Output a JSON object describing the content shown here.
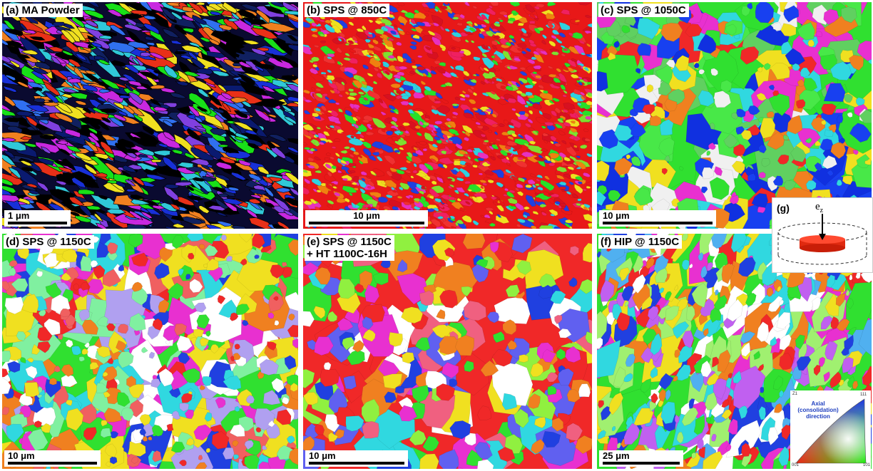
{
  "panels": [
    {
      "id": "a",
      "label": "(a) MA Powder",
      "label2": "",
      "scale": "1 μm",
      "bar_fraction": 0.2,
      "palette": [
        "#1830d8",
        "#0a1a70",
        "#30c8d8",
        "#18e018",
        "#c828e0",
        "#e83018",
        "#f08020",
        "#f0e020",
        "#3070f0",
        "#8040e0",
        "#000000",
        "#000000",
        "#102060"
      ]
    },
    {
      "id": "b",
      "label": "(b) SPS @ 850C",
      "label2": "",
      "scale": "10 μm",
      "bar_fraction": 0.4,
      "palette": [
        "#e81818",
        "#f03030",
        "#d81020",
        "#28e028",
        "#f0e020",
        "#2040e0",
        "#e830c0",
        "#30d0e0",
        "#f08010",
        "#80e030",
        "#f02060"
      ]
    },
    {
      "id": "c",
      "label": "(c) SPS @ 1050C",
      "label2": "",
      "scale": "10 μm",
      "bar_fraction": 0.4,
      "palette": [
        "#30e030",
        "#48e848",
        "#1030e0",
        "#1840f0",
        "#f02828",
        "#e830d0",
        "#30d8e0",
        "#f0e020",
        "#f08020",
        "#f0f0f0",
        "#60d060"
      ]
    },
    {
      "id": "d",
      "label": "(d) SPS @ 1150C",
      "label2": "",
      "scale": "10 μm",
      "bar_fraction": 0.3,
      "palette": [
        "#30e030",
        "#f02828",
        "#2040e0",
        "#e830d0",
        "#f08020",
        "#f0e020",
        "#30d8e0",
        "#b0a0f0",
        "#f06060",
        "#80f0a0",
        "#ffffff"
      ]
    },
    {
      "id": "e",
      "label": "(e) SPS @ 1150C",
      "label2": "+ HT 1100C-16H",
      "scale": "10 μm",
      "bar_fraction": 0.33,
      "palette": [
        "#f02828",
        "#2040e0",
        "#30e030",
        "#f0e020",
        "#e830d0",
        "#30d8e0",
        "#f08020",
        "#f06080",
        "#90f040",
        "#6060f0",
        "#ffffff"
      ]
    },
    {
      "id": "f",
      "label": "(f) HIP @ 1150C",
      "label2": "",
      "scale": "25 μm",
      "bar_fraction": 0.28,
      "palette": [
        "#30e030",
        "#2040e0",
        "#f02828",
        "#e830d0",
        "#f0e020",
        "#30d8e0",
        "#f08020",
        "#a0f070",
        "#c060f0",
        "#ffffff",
        "#50b0f0"
      ]
    }
  ],
  "inset_g": {
    "label": "(g)",
    "axis_symbol": "e",
    "axis_sub": "z"
  },
  "ipf_legend": {
    "caption_line1": "Axial",
    "caption_line2": "(consolidation)",
    "caption_line3": "direction",
    "tick_001": "001",
    "tick_101": "101",
    "tick_111": "111",
    "tick_z1": "Z1"
  }
}
